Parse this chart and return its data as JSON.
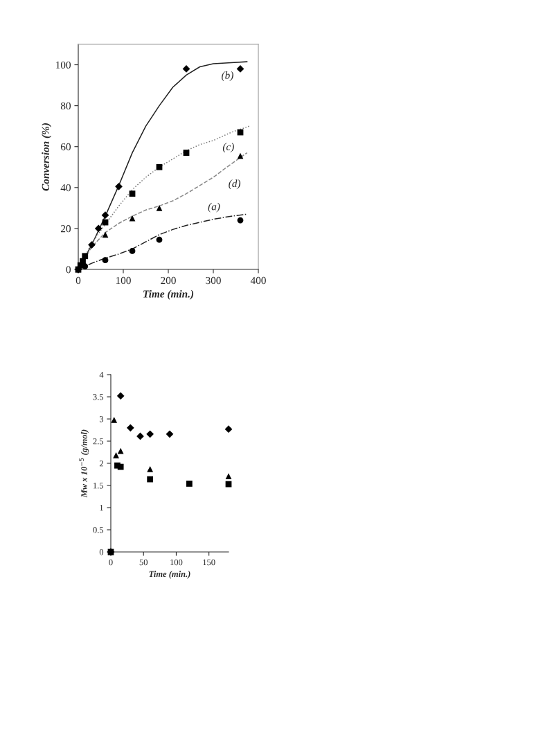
{
  "chart_data": [
    {
      "type": "scatter",
      "xlabel": "Time (min.)",
      "ylabel": "Conversion (%)",
      "xlim": [
        0,
        400
      ],
      "ylim": [
        0,
        110
      ],
      "xticks": [
        0,
        100,
        200,
        300,
        400
      ],
      "yticks": [
        0,
        20,
        40,
        60,
        80,
        100
      ],
      "grid": false,
      "legend": false,
      "series": [
        {
          "type": "scatter",
          "marker": "diamond",
          "color": "#000000",
          "x": [
            0,
            10,
            30,
            45,
            60,
            90,
            240,
            360
          ],
          "values": [
            0,
            null,
            12,
            20,
            26.5,
            40.5,
            98,
            98
          ]
        },
        {
          "type": "scatter",
          "marker": "square",
          "color": "#000000",
          "x": [
            0,
            5,
            10,
            15,
            60,
            120,
            180,
            240,
            360
          ],
          "values": [
            0,
            2,
            4,
            6.5,
            23,
            37,
            50,
            57,
            67
          ]
        },
        {
          "type": "scatter",
          "marker": "triangle",
          "color": "#000000",
          "x": [
            0,
            15,
            60,
            120,
            180,
            360
          ],
          "values": [
            0,
            null,
            17,
            25,
            30,
            55.5
          ]
        },
        {
          "type": "scatter",
          "marker": "circle",
          "color": "#000000",
          "x": [
            15,
            60,
            120,
            180,
            360
          ],
          "values": [
            1.5,
            4.5,
            9,
            14.5,
            24
          ]
        },
        {
          "type": "line",
          "name": "(b)",
          "line_style": "solid",
          "color": "#222222",
          "x": [
            0,
            30,
            60,
            90,
            120,
            150,
            180,
            210,
            240,
            270,
            300,
            340,
            375
          ],
          "values": [
            0,
            12,
            26,
            41,
            57,
            70,
            80,
            89,
            95,
            99,
            100.5,
            101,
            101.5
          ]
        },
        {
          "type": "line",
          "name": "(c)",
          "line_style": "dotted",
          "color": "#777777",
          "x": [
            0,
            30,
            60,
            90,
            120,
            150,
            180,
            210,
            240,
            270,
            300,
            340,
            380
          ],
          "values": [
            0,
            13,
            22,
            31,
            39,
            45,
            50,
            54,
            58,
            61,
            63,
            67,
            70
          ]
        },
        {
          "type": "line",
          "name": "(d)",
          "line_style": "dashed",
          "color": "#888888",
          "x": [
            0,
            30,
            60,
            90,
            120,
            150,
            180,
            210,
            240,
            270,
            300,
            330,
            375
          ],
          "values": [
            0,
            11,
            18,
            22.5,
            26,
            29,
            31,
            33.5,
            37,
            41,
            45,
            50,
            57
          ]
        },
        {
          "type": "line",
          "name": "(a)",
          "line_style": "dashdot",
          "color": "#222222",
          "x": [
            0,
            30,
            60,
            90,
            120,
            150,
            180,
            210,
            240,
            270,
            300,
            340,
            375
          ],
          "values": [
            0,
            3,
            5.5,
            7.5,
            10,
            13.5,
            17,
            19.5,
            21.5,
            23,
            24.5,
            26,
            27
          ]
        }
      ]
    },
    {
      "type": "scatter",
      "xlabel": "Time (min.)",
      "ylabel": "Mw x 10$^{−5}$ (g/mol)",
      "xlim": [
        0,
        180
      ],
      "ylim": [
        0,
        4
      ],
      "xticks": [
        0,
        50,
        100,
        150
      ],
      "yticks": [
        0,
        0.5,
        1,
        1.5,
        2,
        2.5,
        3,
        3.5,
        4
      ],
      "grid": false,
      "legend": false,
      "series": [
        {
          "type": "scatter",
          "marker": "diamond",
          "color": "#000000",
          "x": [
            0,
            15,
            30,
            45,
            60,
            90,
            180
          ],
          "values": [
            0,
            3.52,
            2.8,
            2.61,
            2.66,
            2.66,
            2.77
          ]
        },
        {
          "type": "scatter",
          "marker": "triangle",
          "color": "#000000",
          "x": [
            0,
            5,
            8,
            15,
            60,
            180
          ],
          "values": [
            0,
            2.98,
            2.18,
            2.28,
            1.87,
            1.71
          ]
        },
        {
          "type": "scatter",
          "marker": "square",
          "color": "#000000",
          "x": [
            0,
            10,
            15,
            60,
            120,
            180
          ],
          "values": [
            0,
            1.95,
            1.92,
            1.64,
            1.54,
            1.53
          ]
        }
      ]
    }
  ]
}
